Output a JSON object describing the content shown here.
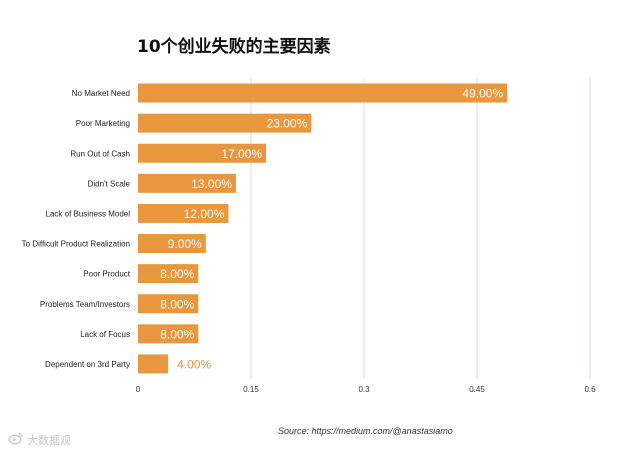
{
  "title": "10个创业失败的主要因素",
  "source": "Source: https://medium.com/@anastasiamo",
  "watermark": {
    "text": "大数据观",
    "icon": "weibo-icon"
  },
  "colors": {
    "bar": "#E8973E",
    "grid": "#E2D7EE",
    "label_inside": "#ffffff",
    "label_outside": "#E8973E"
  },
  "chart_data": {
    "type": "bar",
    "orientation": "horizontal",
    "title": "10个创业失败的主要因素",
    "categories": [
      "No Market Need",
      "Poor Marketing",
      "Run Out of Cash",
      "Didn't Scale",
      "Lack of Business Model",
      "To Difficult Product Realization",
      "Poor Product",
      "Problems Team/Investors",
      "Lack of Focus",
      "Dependent on 3rd Party"
    ],
    "values": [
      0.49,
      0.23,
      0.17,
      0.13,
      0.12,
      0.09,
      0.08,
      0.08,
      0.08,
      0.04
    ],
    "data_labels": [
      "49.00%",
      "23.00%",
      "17.00%",
      "13.00%",
      "12.00%",
      "9.00%",
      "8.00%",
      "8.00%",
      "8.00%",
      "4.00%"
    ],
    "x_ticks": [
      0,
      0.15,
      0.3,
      0.45,
      0.6
    ],
    "x_tick_labels": [
      "0",
      "0.15",
      "0.3",
      "0.45",
      "0.6"
    ],
    "xlim": [
      0,
      0.6
    ],
    "grid": "vertical",
    "legend": "none"
  }
}
